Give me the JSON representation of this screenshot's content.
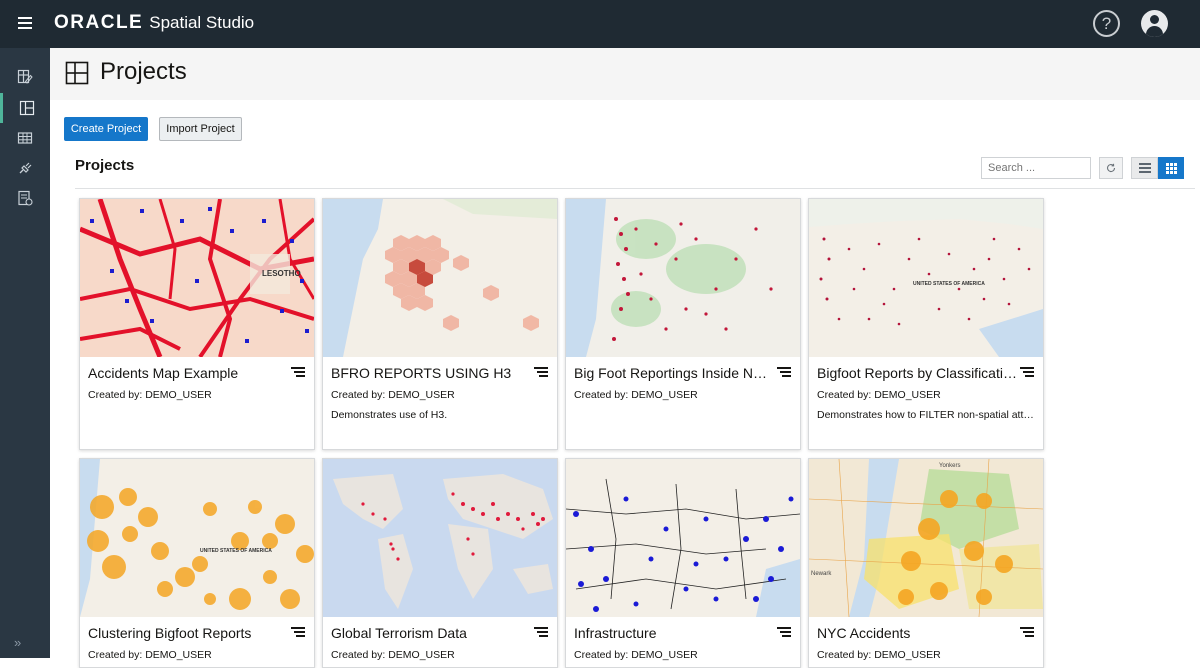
{
  "app": {
    "logo_text": "ORACLE",
    "product_name": "Spatial Studio",
    "help_glyph": "?"
  },
  "page": {
    "title": "Projects"
  },
  "actions": {
    "create_label": "Create Project",
    "import_label": "Import Project"
  },
  "section": {
    "title": "Projects",
    "search_placeholder": "Search ..."
  },
  "sidebar": {
    "items": [
      {
        "name": "datasets-icon"
      },
      {
        "name": "projects-icon",
        "active": true
      },
      {
        "name": "tables-icon"
      },
      {
        "name": "connections-icon"
      },
      {
        "name": "jobs-icon"
      }
    ],
    "expand_glyph": "»"
  },
  "projects": [
    {
      "title": "Accidents Map Example",
      "creator": "Created by: DEMO_USER",
      "description": ""
    },
    {
      "title": "BFRO REPORTS USING H3",
      "creator": "Created by: DEMO_USER",
      "description": "Demonstrates use of H3."
    },
    {
      "title": "Big Foot Reportings Inside Nati...",
      "creator": "Created by: DEMO_USER",
      "description": ""
    },
    {
      "title": "Bigfoot Reports by Classification",
      "creator": "Created by: DEMO_USER",
      "description": "Demonstrates how to FILTER non-spatial attri..."
    },
    {
      "title": "Clustering Bigfoot Reports",
      "creator": "Created by: DEMO_USER",
      "description": ""
    },
    {
      "title": "Global Terrorism Data",
      "creator": "Created by: DEMO_USER",
      "description": ""
    },
    {
      "title": "Infrastructure",
      "creator": "Created by: DEMO_USER",
      "description": ""
    },
    {
      "title": "NYC Accidents",
      "creator": "Created by: DEMO_USER",
      "description": ""
    }
  ],
  "thumbnail_labels": {
    "accidents": "LESOTHO",
    "bigfoot_class": "UNITED STATES OF AMERICA",
    "cluster": "UNITED STATES OF AMERICA",
    "nyc_yonkers": "Yonkers",
    "nyc_newark": "Newark"
  },
  "colors": {
    "topbar": "#1f2a33",
    "sidebar": "#2a3743",
    "accent": "#1577ca",
    "active_marker": "#4fb49a"
  }
}
